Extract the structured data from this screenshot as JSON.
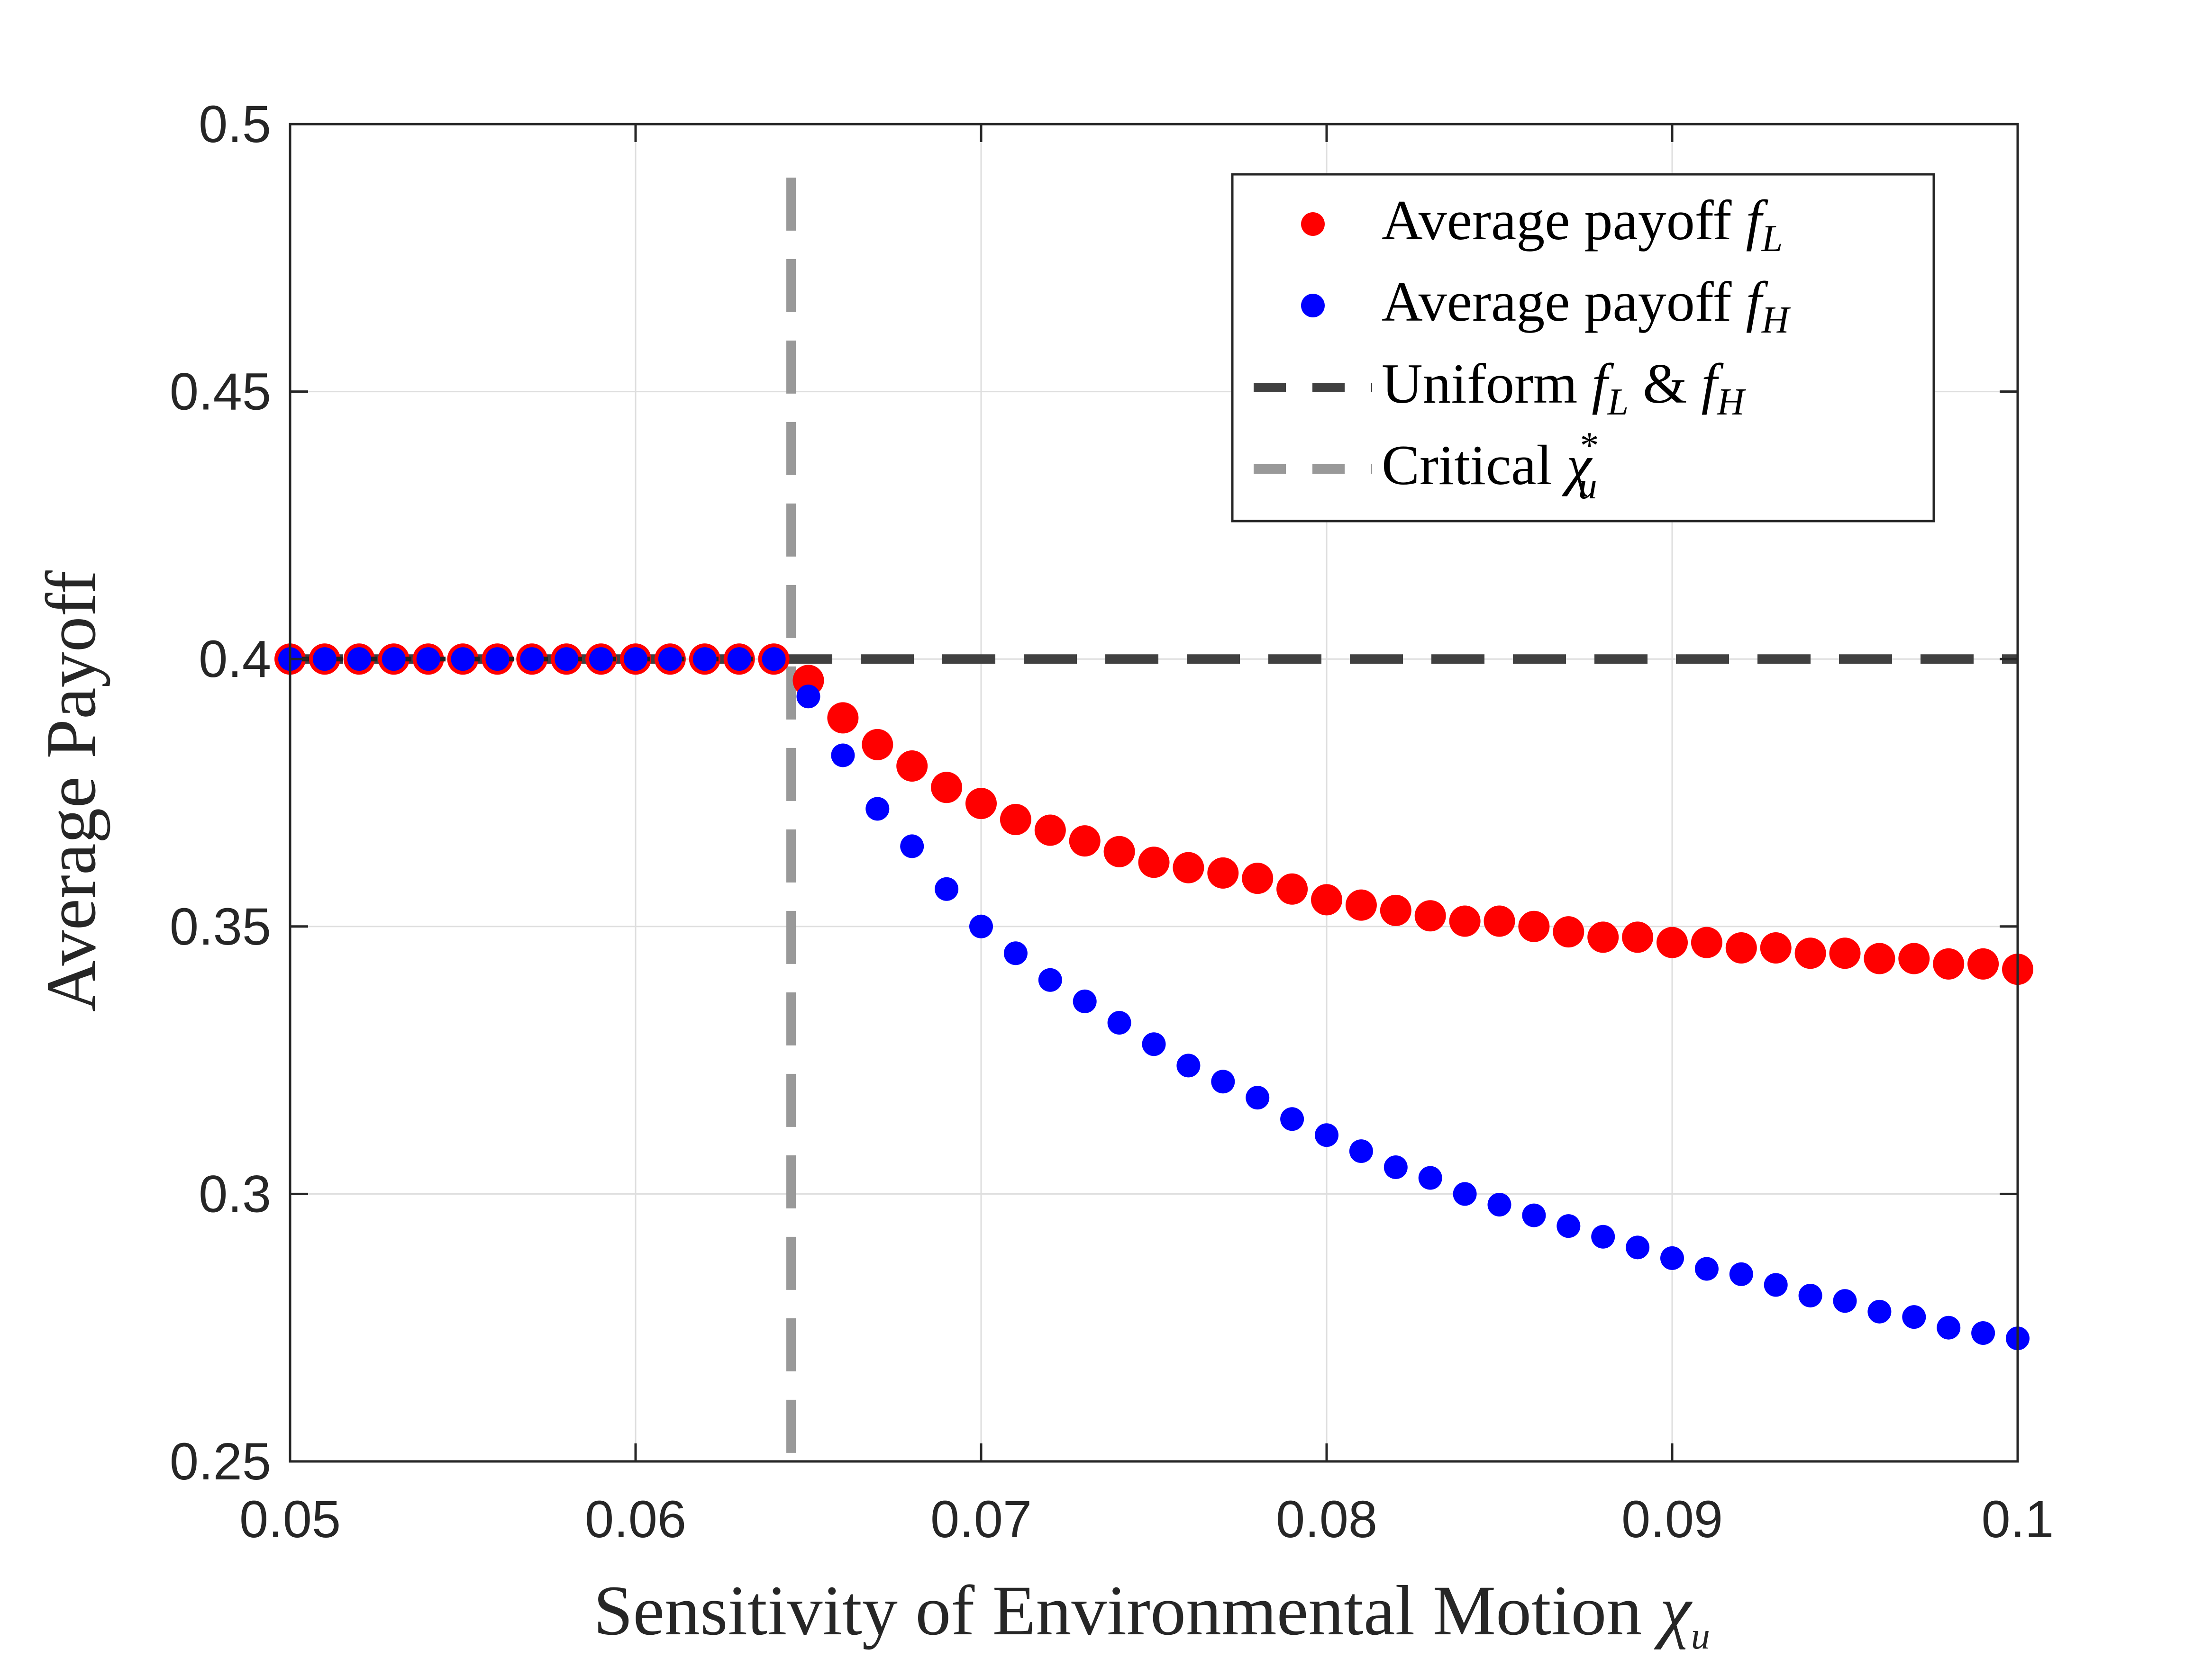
{
  "chart_data": {
    "type": "scatter",
    "xlabel": "Sensitivity of Environmental Motion",
    "xlabel_symbol": "χ",
    "xlabel_sub": "u",
    "ylabel": "Average Payoff",
    "xlim": [
      0.05,
      0.1
    ],
    "ylim": [
      0.25,
      0.5
    ],
    "x_ticks": [
      0.05,
      0.06,
      0.07,
      0.08,
      0.09,
      0.1
    ],
    "x_tick_labels": [
      "0.05",
      "0.06",
      "0.07",
      "0.08",
      "0.09",
      "0.1"
    ],
    "y_ticks": [
      0.25,
      0.3,
      0.35,
      0.4,
      0.45,
      0.5
    ],
    "y_tick_labels": [
      "0.25",
      "0.3",
      "0.35",
      "0.4",
      "0.45",
      "0.5"
    ],
    "grid": true,
    "legend_position": "top-right",
    "x": [
      0.05,
      0.051,
      0.052,
      0.053,
      0.054,
      0.055,
      0.056,
      0.057,
      0.058,
      0.059,
      0.06,
      0.061,
      0.062,
      0.063,
      0.064,
      0.065,
      0.066,
      0.067,
      0.068,
      0.069,
      0.07,
      0.071,
      0.072,
      0.073,
      0.074,
      0.075,
      0.076,
      0.077,
      0.078,
      0.079,
      0.08,
      0.081,
      0.082,
      0.083,
      0.084,
      0.085,
      0.086,
      0.087,
      0.088,
      0.089,
      0.09,
      0.091,
      0.092,
      0.093,
      0.094,
      0.095,
      0.096,
      0.097,
      0.098,
      0.099,
      0.1
    ],
    "series": [
      {
        "name": "Average payoff",
        "symbol": "f",
        "sub": "L",
        "color": "#ff0000",
        "marker": "dot-large",
        "values": [
          0.4,
          0.4,
          0.4,
          0.4,
          0.4,
          0.4,
          0.4,
          0.4,
          0.4,
          0.4,
          0.4,
          0.4,
          0.4,
          0.4,
          0.4,
          0.396,
          0.389,
          0.384,
          0.38,
          0.376,
          0.373,
          0.37,
          0.368,
          0.366,
          0.364,
          0.362,
          0.361,
          0.36,
          0.359,
          0.357,
          0.355,
          0.354,
          0.353,
          0.352,
          0.351,
          0.351,
          0.35,
          0.349,
          0.348,
          0.348,
          0.347,
          0.347,
          0.346,
          0.346,
          0.345,
          0.345,
          0.344,
          0.344,
          0.343,
          0.343,
          0.342
        ]
      },
      {
        "name": "Average payoff",
        "symbol": "f",
        "sub": "H",
        "color": "#0000ff",
        "marker": "dot-small",
        "values": [
          0.4,
          0.4,
          0.4,
          0.4,
          0.4,
          0.4,
          0.4,
          0.4,
          0.4,
          0.4,
          0.4,
          0.4,
          0.4,
          0.4,
          0.4,
          0.393,
          0.382,
          0.372,
          0.365,
          0.357,
          0.35,
          0.345,
          0.34,
          0.336,
          0.332,
          0.328,
          0.324,
          0.321,
          0.318,
          0.314,
          0.311,
          0.308,
          0.305,
          0.303,
          0.3,
          0.298,
          0.296,
          0.294,
          0.292,
          0.29,
          0.288,
          0.286,
          0.285,
          0.283,
          0.281,
          0.28,
          0.278,
          0.277,
          0.275,
          0.274,
          0.273
        ]
      }
    ],
    "lines": [
      {
        "name": "Uniform",
        "legend_parts": [
          "Uniform",
          "f",
          "L",
          "&",
          "f",
          "H"
        ],
        "orientation": "horizontal",
        "y": 0.4,
        "color": "#404040",
        "style": "dashed"
      },
      {
        "name": "Critical",
        "legend_parts": [
          "Critical",
          "χ",
          "u",
          "*"
        ],
        "orientation": "vertical",
        "x": 0.0645,
        "y_range": [
          0.25,
          0.49
        ],
        "color": "#999999",
        "style": "dashed"
      }
    ]
  }
}
